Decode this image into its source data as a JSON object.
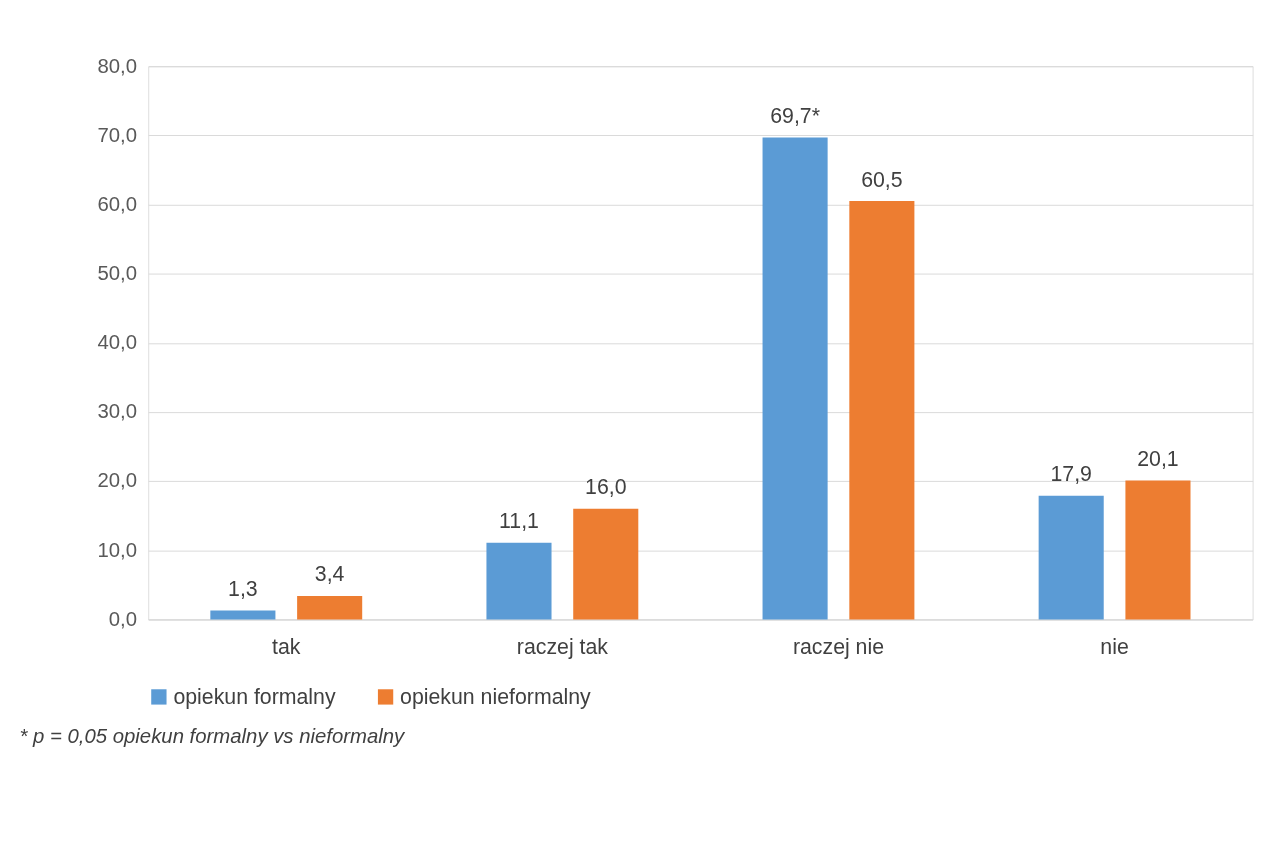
{
  "chart_data": {
    "type": "bar",
    "categories": [
      "tak",
      "raczej tak",
      "raczej nie",
      "nie"
    ],
    "series": [
      {
        "name": "opiekun formalny",
        "color": "#5b9bd5",
        "values": [
          1.3,
          11.1,
          69.7,
          17.9
        ],
        "value_labels": [
          "1,3",
          "11,1",
          "69,7*",
          "17,9"
        ]
      },
      {
        "name": "opiekun nieformalny",
        "color": "#ed7d31",
        "values": [
          3.4,
          16.0,
          60.5,
          20.1
        ],
        "value_labels": [
          "3,4",
          "16,0",
          "60,5",
          "20,1"
        ]
      }
    ],
    "ylim": [
      0,
      80
    ],
    "yticks": [
      {
        "value": 0,
        "label": "0,0"
      },
      {
        "value": 10,
        "label": "10,0"
      },
      {
        "value": 20,
        "label": "20,0"
      },
      {
        "value": 30,
        "label": "30,0"
      },
      {
        "value": 40,
        "label": "40,0"
      },
      {
        "value": 50,
        "label": "50,0"
      },
      {
        "value": 60,
        "label": "60,0"
      },
      {
        "value": 70,
        "label": "70,0"
      },
      {
        "value": 80,
        "label": "80,0"
      }
    ],
    "grid": "y",
    "legend": "bottom",
    "annotations": [
      "* p = 0,05 opiekun formalny vs nieformalny"
    ]
  }
}
